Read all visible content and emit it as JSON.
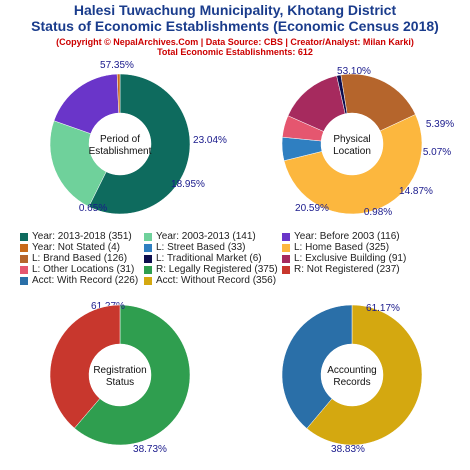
{
  "title_line1": "Halesi Tuwachung Municipality, Khotang District",
  "title_line2": "Status of Economic Establishments (Economic Census 2018)",
  "subtitle_line1": "(Copyright © NepalArchives.Com | Data Source: CBS | Creator/Analyst: Milan Karki)",
  "subtitle_line2": "Total Economic Establishments: 612",
  "colors": {
    "title": "#1a3c8c",
    "subtitle": "#cc0000",
    "pct_label": "#1a1a8c"
  },
  "legend": [
    {
      "label": "Year: 2013-2018 (351)",
      "color": "#0e6b5e"
    },
    {
      "label": "Year: 2003-2013 (141)",
      "color": "#6fd19b"
    },
    {
      "label": "Year: Before 2003 (116)",
      "color": "#6a35c9"
    },
    {
      "label": "Year: Not Stated (4)",
      "color": "#c96a1a"
    },
    {
      "label": "L: Street Based (33)",
      "color": "#2f7fc1"
    },
    {
      "label": "L: Home Based (325)",
      "color": "#fcb73e"
    },
    {
      "label": "L: Brand Based (126)",
      "color": "#b5652c"
    },
    {
      "label": "L: Traditional Market (6)",
      "color": "#0d0d4d"
    },
    {
      "label": "L: Exclusive Building (91)",
      "color": "#a62a5e"
    },
    {
      "label": "L: Other Locations (31)",
      "color": "#e5566f"
    },
    {
      "label": "R: Legally Registered (375)",
      "color": "#2f9e4f"
    },
    {
      "label": "R: Not Registered (237)",
      "color": "#c8372d"
    },
    {
      "label": "Acct: With Record (226)",
      "color": "#2a6fa8"
    },
    {
      "label": "Acct: Without Record (356)",
      "color": "#d4a810"
    }
  ],
  "chart_data": [
    {
      "type": "pie",
      "center_label": [
        "Period of",
        "Establishment"
      ],
      "slices": [
        {
          "name": "Year: 2013-2018",
          "value": 351,
          "label": "57.35%",
          "color": "#0e6b5e"
        },
        {
          "name": "Year: 2003-2013",
          "value": 141,
          "label": "23.04%",
          "color": "#6fd19b"
        },
        {
          "name": "Year: Before 2003",
          "value": 116,
          "label": "18.95%",
          "color": "#6a35c9"
        },
        {
          "name": "Year: Not Stated",
          "value": 4,
          "label": "0.65%",
          "color": "#c96a1a"
        }
      ]
    },
    {
      "type": "pie",
      "center_label": [
        "Physical",
        "Location"
      ],
      "slices": [
        {
          "name": "L: Home Based",
          "value": 325,
          "label": "53.10%",
          "color": "#fcb73e"
        },
        {
          "name": "L: Street Based",
          "value": 33,
          "label": "5.39%",
          "color": "#2f7fc1"
        },
        {
          "name": "L: Other Locations",
          "value": 31,
          "label": "5.07%",
          "color": "#e5566f"
        },
        {
          "name": "L: Exclusive Building",
          "value": 91,
          "label": "14.87%",
          "color": "#a62a5e"
        },
        {
          "name": "L: Traditional Market",
          "value": 6,
          "label": "0.98%",
          "color": "#0d0d4d"
        },
        {
          "name": "L: Brand Based",
          "value": 126,
          "label": "20.59%",
          "color": "#b5652c"
        }
      ]
    },
    {
      "type": "pie",
      "center_label": [
        "Registration",
        "Status"
      ],
      "slices": [
        {
          "name": "R: Legally Registered",
          "value": 375,
          "label": "61.27%",
          "color": "#2f9e4f"
        },
        {
          "name": "R: Not Registered",
          "value": 237,
          "label": "38.73%",
          "color": "#c8372d"
        }
      ]
    },
    {
      "type": "pie",
      "center_label": [
        "Accounting",
        "Records"
      ],
      "slices": [
        {
          "name": "Acct: Without Record",
          "value": 356,
          "label": "61.17%",
          "color": "#d4a810"
        },
        {
          "name": "Acct: With Record",
          "value": 226,
          "label": "38.83%",
          "color": "#2a6fa8"
        }
      ]
    }
  ]
}
